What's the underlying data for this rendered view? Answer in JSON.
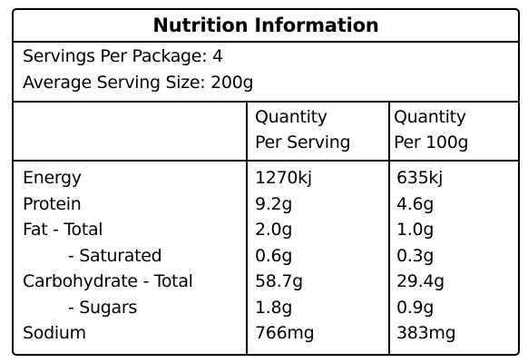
{
  "title": "Nutrition Information",
  "servings_per_package": "Servings Per Package: 4",
  "average_serving_size": "Average Serving Size: 200g",
  "columns": [
    {
      "line1": "Quantity",
      "line2": "Per Serving"
    },
    {
      "line1": "Quantity",
      "line2": "Per 100g"
    }
  ],
  "rows": [
    {
      "label": "Energy",
      "per_serving": "1270kj",
      "per_100g": "635kj"
    },
    {
      "label": "Protein",
      "per_serving": "9.2g",
      "per_100g": "4.6g"
    },
    {
      "label": "Fat  - Total",
      "per_serving": "2.0g",
      "per_100g": "1.0g"
    },
    {
      "label": "- Saturated",
      "per_serving": "0.6g",
      "per_100g": "0.3g"
    },
    {
      "label": "Carbohydrate - Total",
      "per_serving": "58.7g",
      "per_100g": "29.4g"
    },
    {
      "label": "- Sugars",
      "per_serving": "1.8g",
      "per_100g": "0.9g"
    },
    {
      "label": "Sodium",
      "per_serving": "766mg",
      "per_100g": "383mg"
    }
  ]
}
